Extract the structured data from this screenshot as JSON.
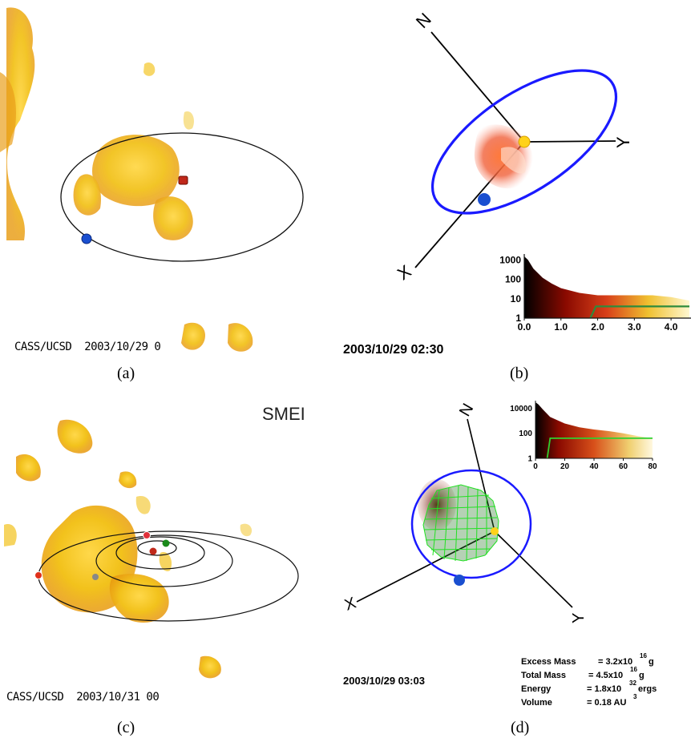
{
  "panels": [
    {
      "id": "a",
      "label": "(a)",
      "timestamp": "CASS/UCSD  2003/10/29 0"
    },
    {
      "id": "b",
      "label": "(b)",
      "timestamp": "2003/10/29 02:30",
      "axis_labels": {
        "n": "N",
        "y": "Y",
        "x": "X"
      }
    },
    {
      "id": "c",
      "label": "(c)",
      "timestamp": "CASS/UCSD  2003/10/31 00",
      "badge": "SMEI"
    },
    {
      "id": "d",
      "label": "(d)",
      "timestamp": "2003/10/29 03:03",
      "axis_labels": {
        "n": "N",
        "y": "Y",
        "x": "X"
      },
      "stats": [
        {
          "name": "Excess Mass",
          "value": "= 3.2x10",
          "exp": "16",
          "unit": "g"
        },
        {
          "name": "Total Mass",
          "value": "= 4.5x10",
          "exp": "16",
          "unit": "g"
        },
        {
          "name": "Energy",
          "value": "= 1.8x10",
          "exp": "32",
          "unit": "ergs"
        },
        {
          "name": "Volume",
          "value": "= 0.18 AU",
          "exp": "3",
          "unit": ""
        }
      ]
    }
  ],
  "chart_data": [
    {
      "type": "area",
      "panel": "b",
      "x_ticks": [
        "0.0",
        "1.0",
        "2.0",
        "3.0",
        "4.0"
      ],
      "y_ticks": [
        "1",
        "10",
        "100",
        "1000"
      ],
      "y_scale": "log",
      "xlim": [
        0,
        4.5
      ],
      "ylim": [
        1,
        2000
      ],
      "histogram": {
        "x": [
          0.0,
          0.1,
          0.25,
          0.5,
          0.75,
          1.0,
          1.5,
          2.0,
          2.5,
          3.0,
          3.5,
          4.0,
          4.5
        ],
        "y": [
          1500,
          1000,
          350,
          120,
          60,
          35,
          20,
          15,
          15,
          15,
          15,
          12,
          8
        ]
      },
      "threshold_line": {
        "x": [
          1.8,
          1.95,
          4.5
        ],
        "y": [
          1,
          4,
          4
        ],
        "color": "#2e8b3c"
      }
    },
    {
      "type": "area",
      "panel": "d",
      "x_ticks": [
        "0",
        "20",
        "40",
        "60",
        "80"
      ],
      "y_ticks": [
        "1",
        "100",
        "10000"
      ],
      "y_scale": "log",
      "xlim": [
        0,
        80
      ],
      "ylim": [
        1,
        40000
      ],
      "histogram": {
        "x": [
          0,
          2,
          5,
          10,
          20,
          30,
          40,
          50,
          60,
          70,
          80
        ],
        "y": [
          30000,
          20000,
          8000,
          2000,
          600,
          300,
          200,
          150,
          100,
          60,
          40
        ]
      },
      "threshold_line": {
        "x": [
          8,
          10,
          80
        ],
        "y": [
          1,
          40,
          40
        ],
        "color": "#30d030"
      }
    }
  ],
  "colors": {
    "blue_orbit": "#1a1aff",
    "cloud_yellow": "#f2c21c",
    "cloud_orange": "#e89a10",
    "earth_blue": "#1a4fd0",
    "sun_red": "#c0281a",
    "sun_yellow": "#ffd21a"
  }
}
